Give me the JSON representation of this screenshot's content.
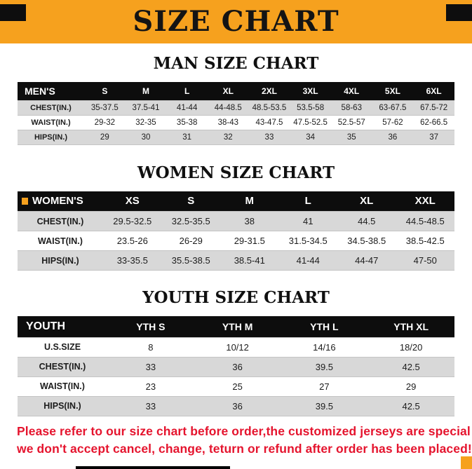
{
  "banner": {
    "title": "SIZE CHART",
    "bg_color": "#f6a11e",
    "corner_color": "#0e0e0e"
  },
  "colors": {
    "header_row_bg": "#0d0d0d",
    "stripe_gray": "#d8d8d8",
    "footer_red": "#e5142e",
    "accent_orange": "#f6a11e"
  },
  "sections": [
    {
      "heading": "MAN SIZE CHART",
      "table": {
        "header": [
          "MEN'S",
          "S",
          "M",
          "L",
          "XL",
          "2XL",
          "3XL",
          "4XL",
          "5XL",
          "6XL"
        ],
        "rows": [
          [
            "CHEST(IN.)",
            "35-37.5",
            "37.5-41",
            "41-44",
            "44-48.5",
            "48.5-53.5",
            "53.5-58",
            "58-63",
            "63-67.5",
            "67.5-72"
          ],
          [
            "WAIST(IN.)",
            "29-32",
            "32-35",
            "35-38",
            "38-43",
            "43-47.5",
            "47.5-52.5",
            "52.5-57",
            "57-62",
            "62-66.5"
          ],
          [
            "HIPS(IN.)",
            "29",
            "30",
            "31",
            "32",
            "33",
            "34",
            "35",
            "36",
            "37"
          ]
        ]
      }
    },
    {
      "heading": "WOMEN SIZE CHART",
      "table": {
        "header": [
          "WOMEN'S",
          "XS",
          "S",
          "M",
          "L",
          "XL",
          "XXL"
        ],
        "rows": [
          [
            "CHEST(IN.)",
            "29.5-32.5",
            "32.5-35.5",
            "38",
            "41",
            "44.5",
            "44.5-48.5"
          ],
          [
            "WAIST(IN.)",
            "23.5-26",
            "26-29",
            "29-31.5",
            "31.5-34.5",
            "34.5-38.5",
            "38.5-42.5"
          ],
          [
            "HIPS(IN.)",
            "33-35.5",
            "35.5-38.5",
            "38.5-41",
            "41-44",
            "44-47",
            "47-50"
          ]
        ]
      }
    },
    {
      "heading": "YOUTH SIZE CHART",
      "table": {
        "header": [
          "YOUTH",
          "YTH S",
          "YTH M",
          "YTH L",
          "YTH XL"
        ],
        "rows": [
          [
            "U.S.SIZE",
            "8",
            "10/12",
            "14/16",
            "18/20"
          ],
          [
            "CHEST(IN.)",
            "33",
            "36",
            "39.5",
            "42.5"
          ],
          [
            "WAIST(IN.)",
            "23",
            "25",
            "27",
            "29"
          ],
          [
            "HIPS(IN.)",
            "33",
            "36",
            "39.5",
            "42.5"
          ]
        ]
      }
    }
  ],
  "footer": {
    "line1": "Please refer to our size chart before order,the customized jerseys are special products,",
    "line2": "we don't accept cancel, change, teturn or refund after order has been placed!"
  }
}
